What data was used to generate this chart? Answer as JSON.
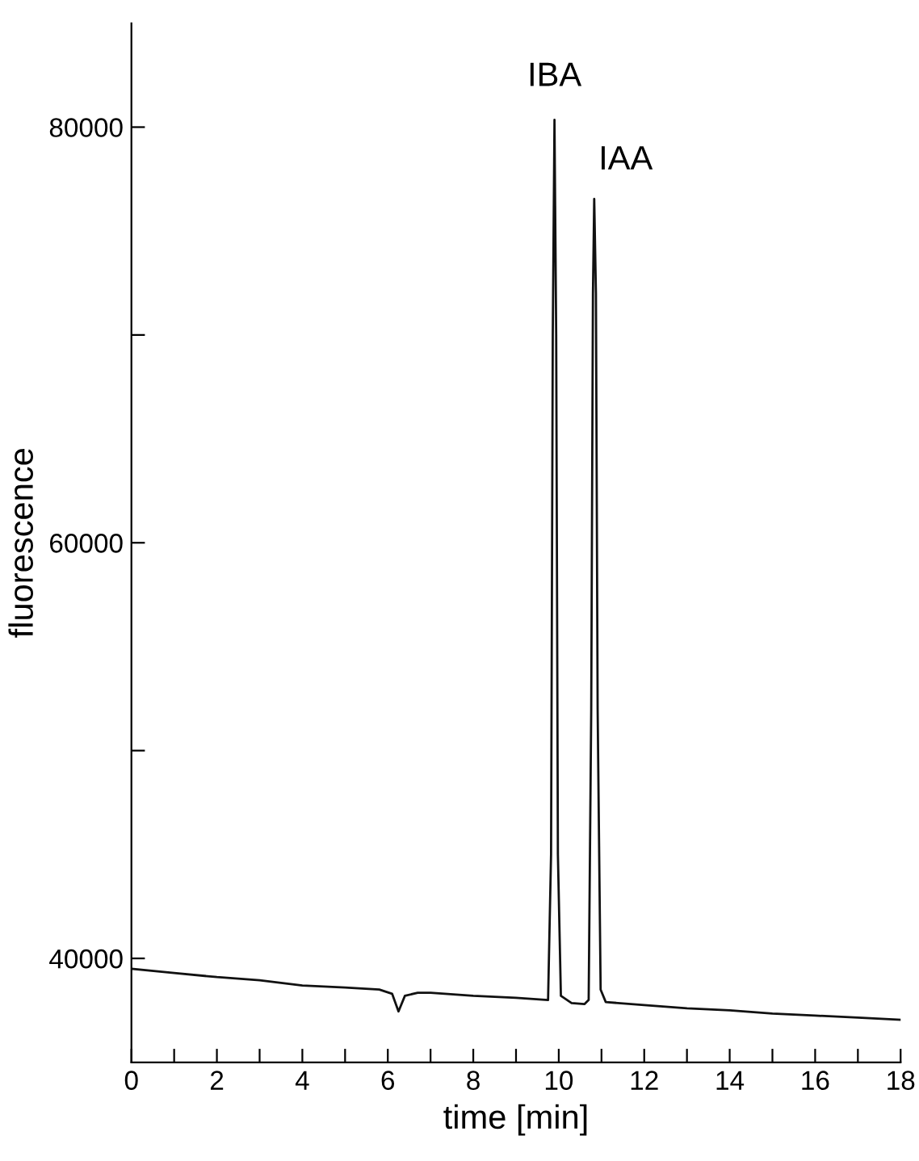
{
  "chart_data": {
    "type": "line",
    "xlabel": "time [min]",
    "ylabel": "fluorescence",
    "x": [
      0,
      1,
      2,
      3,
      4,
      5,
      5.8,
      6.1,
      6.25,
      6.4,
      6.7,
      7,
      8,
      9,
      9.75,
      9.82,
      9.86,
      9.9,
      9.94,
      9.98,
      10.05,
      10.3,
      10.6,
      10.7,
      10.76,
      10.8,
      10.83,
      10.87,
      10.91,
      10.98,
      11.1,
      12,
      13,
      14,
      15,
      16,
      17,
      18
    ],
    "series": [
      {
        "color": "#111111",
        "values": [
          39500,
          39300,
          39100,
          38950,
          38700,
          38600,
          38500,
          38300,
          37450,
          38200,
          38350,
          38350,
          38200,
          38100,
          38000,
          45000,
          70000,
          80350,
          70000,
          45000,
          38200,
          37850,
          37800,
          38000,
          52000,
          72000,
          76550,
          72000,
          52000,
          38500,
          37900,
          37750,
          37600,
          37500,
          37350,
          37250,
          37150,
          37050
        ]
      }
    ],
    "xlim": [
      0,
      18
    ],
    "ylim": [
      35000,
      85000
    ],
    "xticks": [
      0,
      {
        "value": 1,
        "label": null
      },
      2,
      {
        "value": 3,
        "label": null
      },
      4,
      {
        "value": 5,
        "label": null
      },
      6,
      {
        "value": 7,
        "label": null
      },
      8,
      {
        "value": 9,
        "label": null
      },
      10,
      {
        "value": 11,
        "label": null
      },
      12,
      {
        "value": 13,
        "label": null
      },
      14,
      {
        "value": 15,
        "label": null
      },
      16,
      {
        "value": 17,
        "label": null
      },
      18
    ],
    "yticks": [
      40000,
      {
        "value": 50000,
        "label": null
      },
      60000,
      {
        "value": 70000,
        "label": null
      },
      80000
    ],
    "annotations": [
      {
        "text": "IBA",
        "x": 9.9,
        "y": 80350
      },
      {
        "text": "IAA",
        "x": 10.83,
        "y": 76550
      }
    ],
    "grid": false,
    "legend": false,
    "marker": "none",
    "line_style": "solid"
  }
}
